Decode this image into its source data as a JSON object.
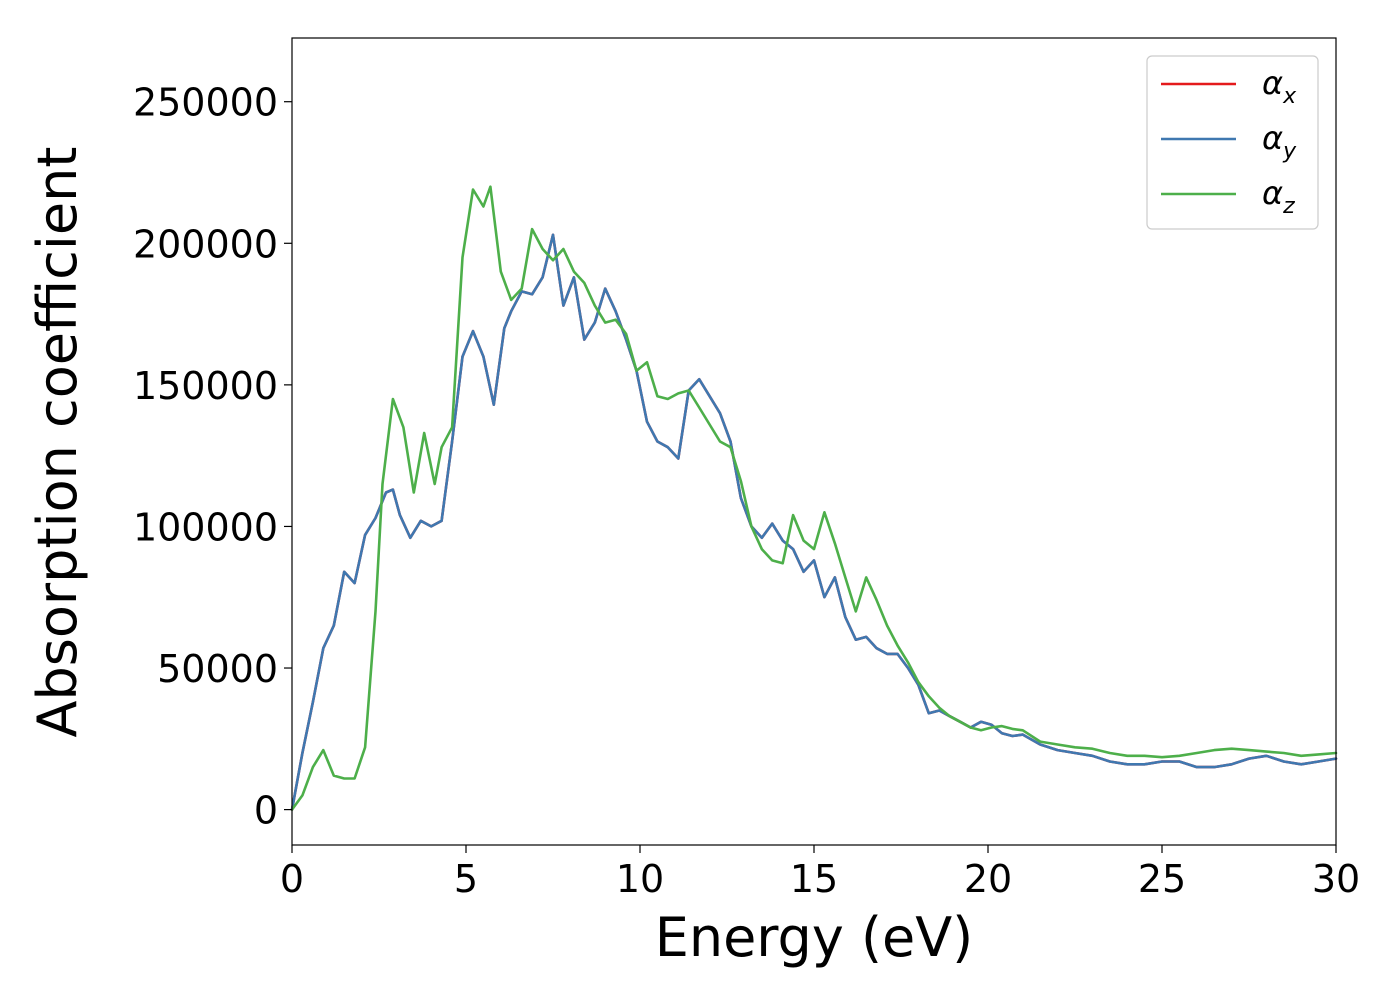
{
  "chart_data": {
    "type": "line",
    "xlabel": "Energy (eV)",
    "ylabel": "Absorption coefficient",
    "xlim": [
      0,
      30
    ],
    "ylim": [
      -12500,
      272500
    ],
    "xticks": [
      0,
      5,
      10,
      15,
      20,
      25,
      30
    ],
    "xtick_labels": [
      "0",
      "5",
      "10",
      "15",
      "20",
      "25",
      "30"
    ],
    "yticks": [
      0,
      50000,
      100000,
      150000,
      200000,
      250000
    ],
    "ytick_labels": [
      "0",
      "50000",
      "100000",
      "150000",
      "200000",
      "250000"
    ],
    "grid": false,
    "legend_position": "top-right",
    "series": [
      {
        "name": "α",
        "subscript": "x",
        "color": "#e41a1c",
        "x": [
          0,
          0.3,
          0.6,
          0.9,
          1.2,
          1.5,
          1.8,
          2.1,
          2.4,
          2.7,
          2.9,
          3.1,
          3.4,
          3.7,
          4.0,
          4.3,
          4.6,
          4.9,
          5.2,
          5.5,
          5.8,
          6.1,
          6.3,
          6.6,
          6.9,
          7.2,
          7.5,
          7.8,
          8.1,
          8.4,
          8.7,
          9.0,
          9.3,
          9.6,
          9.9,
          10.2,
          10.5,
          10.8,
          11.1,
          11.4,
          11.7,
          12.0,
          12.3,
          12.6,
          12.9,
          13.2,
          13.5,
          13.8,
          14.1,
          14.4,
          14.7,
          15.0,
          15.3,
          15.6,
          15.9,
          16.2,
          16.5,
          16.8,
          17.1,
          17.4,
          17.7,
          18.0,
          18.3,
          18.6,
          18.9,
          19.2,
          19.5,
          19.8,
          20.1,
          20.4,
          20.7,
          21.0,
          21.5,
          22.0,
          22.5,
          23.0,
          23.5,
          24.0,
          24.5,
          25.0,
          25.5,
          26.0,
          26.5,
          27.0,
          27.5,
          28.0,
          28.5,
          29.0,
          29.5,
          30.0
        ],
        "values": [
          0,
          20000,
          38000,
          57000,
          65000,
          84000,
          80000,
          97000,
          103000,
          112000,
          113000,
          104000,
          96000,
          102000,
          100000,
          102000,
          130000,
          160000,
          169000,
          160000,
          143000,
          170000,
          176000,
          183000,
          182000,
          188000,
          203000,
          178000,
          188000,
          166000,
          172000,
          184000,
          176000,
          166000,
          155000,
          137000,
          130000,
          128000,
          124000,
          148000,
          152000,
          146000,
          140000,
          130000,
          110000,
          100000,
          96000,
          101000,
          95000,
          92000,
          84000,
          88000,
          75000,
          82000,
          68000,
          60000,
          61000,
          57000,
          55000,
          55000,
          50000,
          44000,
          34000,
          35000,
          33000,
          31000,
          29000,
          31000,
          30000,
          27000,
          26000,
          26500,
          23000,
          21000,
          20000,
          19000,
          17000,
          16000,
          16000,
          17000,
          17000,
          15000,
          15000,
          16000,
          18000,
          19000,
          17000,
          16000,
          17000,
          18000
        ]
      },
      {
        "name": "α",
        "subscript": "y",
        "color": "#3f78b0",
        "x": [
          0,
          0.3,
          0.6,
          0.9,
          1.2,
          1.5,
          1.8,
          2.1,
          2.4,
          2.7,
          2.9,
          3.1,
          3.4,
          3.7,
          4.0,
          4.3,
          4.6,
          4.9,
          5.2,
          5.5,
          5.8,
          6.1,
          6.3,
          6.6,
          6.9,
          7.2,
          7.5,
          7.8,
          8.1,
          8.4,
          8.7,
          9.0,
          9.3,
          9.6,
          9.9,
          10.2,
          10.5,
          10.8,
          11.1,
          11.4,
          11.7,
          12.0,
          12.3,
          12.6,
          12.9,
          13.2,
          13.5,
          13.8,
          14.1,
          14.4,
          14.7,
          15.0,
          15.3,
          15.6,
          15.9,
          16.2,
          16.5,
          16.8,
          17.1,
          17.4,
          17.7,
          18.0,
          18.3,
          18.6,
          18.9,
          19.2,
          19.5,
          19.8,
          20.1,
          20.4,
          20.7,
          21.0,
          21.5,
          22.0,
          22.5,
          23.0,
          23.5,
          24.0,
          24.5,
          25.0,
          25.5,
          26.0,
          26.5,
          27.0,
          27.5,
          28.0,
          28.5,
          29.0,
          29.5,
          30.0
        ],
        "values": [
          0,
          20000,
          38000,
          57000,
          65000,
          84000,
          80000,
          97000,
          103000,
          112000,
          113000,
          104000,
          96000,
          102000,
          100000,
          102000,
          130000,
          160000,
          169000,
          160000,
          143000,
          170000,
          176000,
          183000,
          182000,
          188000,
          203000,
          178000,
          188000,
          166000,
          172000,
          184000,
          176000,
          166000,
          155000,
          137000,
          130000,
          128000,
          124000,
          148000,
          152000,
          146000,
          140000,
          130000,
          110000,
          100000,
          96000,
          101000,
          95000,
          92000,
          84000,
          88000,
          75000,
          82000,
          68000,
          60000,
          61000,
          57000,
          55000,
          55000,
          50000,
          44000,
          34000,
          35000,
          33000,
          31000,
          29000,
          31000,
          30000,
          27000,
          26000,
          26500,
          23000,
          21000,
          20000,
          19000,
          17000,
          16000,
          16000,
          17000,
          17000,
          15000,
          15000,
          16000,
          18000,
          19000,
          17000,
          16000,
          17000,
          18000
        ]
      },
      {
        "name": "α",
        "subscript": "z",
        "color": "#4daf4a",
        "x": [
          0,
          0.3,
          0.6,
          0.9,
          1.2,
          1.5,
          1.8,
          2.1,
          2.4,
          2.6,
          2.9,
          3.2,
          3.5,
          3.8,
          4.1,
          4.3,
          4.6,
          4.9,
          5.2,
          5.5,
          5.7,
          6.0,
          6.3,
          6.6,
          6.9,
          7.2,
          7.5,
          7.8,
          8.1,
          8.4,
          8.7,
          9.0,
          9.3,
          9.6,
          9.9,
          10.2,
          10.5,
          10.8,
          11.1,
          11.4,
          11.7,
          12.0,
          12.3,
          12.6,
          12.9,
          13.2,
          13.5,
          13.8,
          14.1,
          14.4,
          14.7,
          15.0,
          15.3,
          15.6,
          15.9,
          16.2,
          16.5,
          16.8,
          17.1,
          17.4,
          17.7,
          18.0,
          18.3,
          18.6,
          18.9,
          19.2,
          19.5,
          19.8,
          20.1,
          20.4,
          20.7,
          21.0,
          21.5,
          22.0,
          22.5,
          23.0,
          23.5,
          24.0,
          24.5,
          25.0,
          25.5,
          26.0,
          26.5,
          27.0,
          27.5,
          28.0,
          28.5,
          29.0,
          29.5,
          30.0
        ],
        "values": [
          0,
          5000,
          15000,
          21000,
          12000,
          11000,
          11000,
          22000,
          70000,
          115000,
          145000,
          135000,
          112000,
          133000,
          115000,
          128000,
          135000,
          195000,
          219000,
          213000,
          220000,
          190000,
          180000,
          184000,
          205000,
          198000,
          194000,
          198000,
          190000,
          186000,
          178000,
          172000,
          173000,
          168000,
          155000,
          158000,
          146000,
          145000,
          147000,
          148000,
          142000,
          136000,
          130000,
          128000,
          116000,
          100000,
          92000,
          88000,
          87000,
          104000,
          95000,
          92000,
          105000,
          94000,
          82000,
          70000,
          82000,
          74000,
          65000,
          58000,
          52000,
          45000,
          40000,
          36000,
          33000,
          31000,
          29000,
          28000,
          29000,
          29500,
          28500,
          28000,
          24000,
          23000,
          22000,
          21500,
          20000,
          19000,
          19000,
          18500,
          19000,
          20000,
          21000,
          21500,
          21000,
          20500,
          20000,
          19000,
          19500,
          20000
        ]
      }
    ]
  }
}
